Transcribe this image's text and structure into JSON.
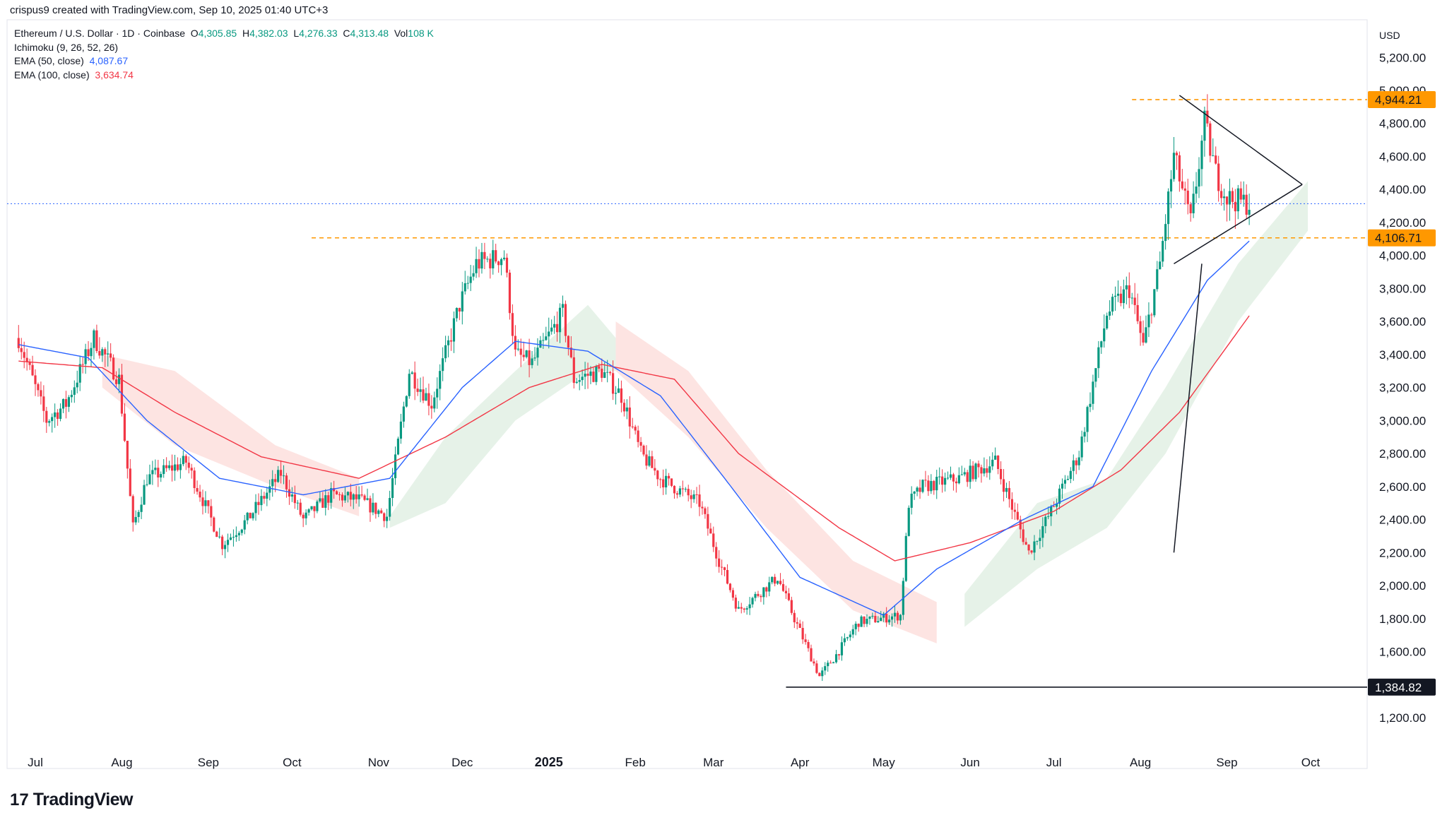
{
  "header": {
    "created_text": "crispus9 created with TradingView.com, Sep 10, 2025 01:40 UTC+3"
  },
  "legend": {
    "symbol": "Ethereum / U.S. Dollar · 1D · Coinbase",
    "o_label": "O",
    "o_val": "4,305.85",
    "h_label": "H",
    "h_val": "4,382.03",
    "l_label": "L",
    "l_val": "4,276.33",
    "c_label": "C",
    "c_val": "4,313.48",
    "vol_label": "Vol",
    "vol_val": "108 K",
    "ichimoku": "Ichimoku (9, 26, 52, 26)",
    "ema50_label": "EMA (50, close)",
    "ema50_val": "4,087.67",
    "ema100_label": "EMA (100, close)",
    "ema100_val": "3,634.74"
  },
  "footer": {
    "brand": "TradingView",
    "brand_mark": "17"
  },
  "colors": {
    "up": "#089981",
    "down": "#f23645",
    "ema50": "#2962ff",
    "ema100": "#f23645",
    "cloud_bull": "#e3f1e6",
    "cloud_bear": "#fde1df",
    "level": "#ff9800",
    "label_orange": "#ff9800"
  },
  "chart_data": {
    "type": "candlestick",
    "title": "Ethereum / U.S. Dollar · 1D · Coinbase",
    "currency": "USD",
    "y_ticks": [
      "5,200.00",
      "5,000.00",
      "4,800.00",
      "4,600.00",
      "4,400.00",
      "4,200.00",
      "4,000.00",
      "3,800.00",
      "3,600.00",
      "3,400.00",
      "3,200.00",
      "3,000.00",
      "2,800.00",
      "2,600.00",
      "2,400.00",
      "2,200.00",
      "2,000.00",
      "1,800.00",
      "1,600.00",
      "1,200.00"
    ],
    "y_tick_values": [
      5200,
      5000,
      4800,
      4600,
      4400,
      4200,
      4000,
      3800,
      3600,
      3400,
      3200,
      3000,
      2800,
      2600,
      2400,
      2200,
      2000,
      1800,
      1600,
      1200
    ],
    "ylim": [
      1100,
      5300
    ],
    "x_ticks": [
      "Jul",
      "Aug",
      "Sep",
      "Oct",
      "Nov",
      "Dec",
      "2025",
      "Feb",
      "Mar",
      "Apr",
      "May",
      "Jun",
      "Jul",
      "Aug",
      "Sep",
      "Oct"
    ],
    "x_tick_dates": [
      "2024-07-01",
      "2024-08-01",
      "2024-09-01",
      "2024-10-01",
      "2024-11-01",
      "2024-12-01",
      "2025-01-01",
      "2025-02-01",
      "2025-03-01",
      "2025-04-01",
      "2025-05-01",
      "2025-06-01",
      "2025-07-01",
      "2025-08-01",
      "2025-09-01",
      "2025-10-01"
    ],
    "price_labels": [
      {
        "text": "4,944.21",
        "value": 4944.21,
        "style": "orange"
      },
      {
        "text": "4,106.71",
        "value": 4106.71,
        "style": "orange"
      },
      {
        "text": "1,384.82",
        "value": 1384.82,
        "style": "black"
      }
    ],
    "horizontal_levels": [
      {
        "value": 4944.21,
        "from": "2025-07-29",
        "style": "dashed-orange"
      },
      {
        "value": 4106.71,
        "from": "2024-10-08",
        "style": "dashed-orange"
      },
      {
        "value": 1384.82,
        "from": "2025-03-27",
        "style": "solid-black"
      },
      {
        "value": 4313.48,
        "from": "2024-06-25",
        "style": "dotted-blue"
      }
    ],
    "trendlines": [
      {
        "from": [
          "2025-08-13",
          2200
        ],
        "to": [
          "2025-08-23",
          3950
        ]
      },
      {
        "from": [
          "2025-08-13",
          3950
        ],
        "to": [
          "2025-09-28",
          4430
        ]
      },
      {
        "from": [
          "2025-08-15",
          4970
        ],
        "to": [
          "2025-09-28",
          4430
        ]
      }
    ],
    "price_path": [
      [
        "2024-06-25",
        3500
      ],
      [
        "2024-07-05",
        3000
      ],
      [
        "2024-07-12",
        3100
      ],
      [
        "2024-07-22",
        3500
      ],
      [
        "2024-07-31",
        3250
      ],
      [
        "2024-08-05",
        2350
      ],
      [
        "2024-08-10",
        2650
      ],
      [
        "2024-08-24",
        2750
      ],
      [
        "2024-09-06",
        2250
      ],
      [
        "2024-09-15",
        2400
      ],
      [
        "2024-09-27",
        2680
      ],
      [
        "2024-10-05",
        2400
      ],
      [
        "2024-10-15",
        2550
      ],
      [
        "2024-10-25",
        2520
      ],
      [
        "2024-11-04",
        2420
      ],
      [
        "2024-11-12",
        3300
      ],
      [
        "2024-11-20",
        3100
      ],
      [
        "2024-11-30",
        3700
      ],
      [
        "2024-12-06",
        3950
      ],
      [
        "2024-12-16",
        4000
      ],
      [
        "2024-12-20",
        3400
      ],
      [
        "2024-12-26",
        3350
      ],
      [
        "2025-01-06",
        3650
      ],
      [
        "2025-01-10",
        3250
      ],
      [
        "2025-01-20",
        3300
      ],
      [
        "2025-01-27",
        3150
      ],
      [
        "2025-02-03",
        2800
      ],
      [
        "2025-02-10",
        2650
      ],
      [
        "2025-02-24",
        2500
      ],
      [
        "2025-03-03",
        2150
      ],
      [
        "2025-03-10",
        1850
      ],
      [
        "2025-03-24",
        2050
      ],
      [
        "2025-03-30",
        1800
      ],
      [
        "2025-04-08",
        1450
      ],
      [
        "2025-04-14",
        1580
      ],
      [
        "2025-04-22",
        1780
      ],
      [
        "2025-05-07",
        1820
      ],
      [
        "2025-05-10",
        2500
      ],
      [
        "2025-05-15",
        2600
      ],
      [
        "2025-05-28",
        2650
      ],
      [
        "2025-06-10",
        2750
      ],
      [
        "2025-06-22",
        2200
      ],
      [
        "2025-06-30",
        2450
      ],
      [
        "2025-07-10",
        2800
      ],
      [
        "2025-07-20",
        3650
      ],
      [
        "2025-07-28",
        3800
      ],
      [
        "2025-08-02",
        3450
      ],
      [
        "2025-08-08",
        3950
      ],
      [
        "2025-08-13",
        4600
      ],
      [
        "2025-08-19",
        4200
      ],
      [
        "2025-08-24",
        4800
      ],
      [
        "2025-08-28",
        4500
      ],
      [
        "2025-09-01",
        4350
      ],
      [
        "2025-09-09",
        4313.48
      ]
    ],
    "ema50_path": [
      [
        "2024-06-25",
        3460
      ],
      [
        "2024-07-20",
        3380
      ],
      [
        "2024-08-10",
        3000
      ],
      [
        "2024-09-05",
        2650
      ],
      [
        "2024-10-05",
        2550
      ],
      [
        "2024-11-05",
        2650
      ],
      [
        "2024-12-01",
        3200
      ],
      [
        "2024-12-20",
        3480
      ],
      [
        "2025-01-15",
        3420
      ],
      [
        "2025-02-10",
        3150
      ],
      [
        "2025-03-05",
        2650
      ],
      [
        "2025-04-01",
        2050
      ],
      [
        "2025-05-01",
        1820
      ],
      [
        "2025-05-20",
        2100
      ],
      [
        "2025-06-20",
        2400
      ],
      [
        "2025-07-15",
        2600
      ],
      [
        "2025-08-05",
        3300
      ],
      [
        "2025-08-25",
        3850
      ],
      [
        "2025-09-09",
        4087.67
      ]
    ],
    "ema100_path": [
      [
        "2024-06-25",
        3360
      ],
      [
        "2024-07-25",
        3320
      ],
      [
        "2024-08-20",
        3050
      ],
      [
        "2024-09-20",
        2780
      ],
      [
        "2024-10-25",
        2650
      ],
      [
        "2024-11-25",
        2900
      ],
      [
        "2024-12-25",
        3200
      ],
      [
        "2025-01-20",
        3340
      ],
      [
        "2025-02-15",
        3250
      ],
      [
        "2025-03-10",
        2800
      ],
      [
        "2025-04-15",
        2350
      ],
      [
        "2025-05-05",
        2150
      ],
      [
        "2025-06-01",
        2260
      ],
      [
        "2025-07-01",
        2450
      ],
      [
        "2025-07-25",
        2700
      ],
      [
        "2025-08-15",
        3050
      ],
      [
        "2025-09-09",
        3634.74
      ]
    ],
    "cloud_segments": [
      {
        "sentiment": "bear",
        "points": [
          [
            "2024-07-25",
            3400,
            3200
          ],
          [
            "2024-08-20",
            3300,
            2850
          ],
          [
            "2024-09-25",
            2850,
            2600
          ],
          [
            "2024-10-25",
            2650,
            2420
          ]
        ]
      },
      {
        "sentiment": "bull",
        "points": [
          [
            "2024-11-05",
            2420,
            2350
          ],
          [
            "2024-11-25",
            2900,
            2500
          ],
          [
            "2024-12-20",
            3300,
            3000
          ],
          [
            "2025-01-15",
            3700,
            3300
          ],
          [
            "2025-01-25",
            3500,
            3300
          ]
        ]
      },
      {
        "sentiment": "bear",
        "points": [
          [
            "2025-01-25",
            3600,
            3300
          ],
          [
            "2025-02-20",
            3300,
            2900
          ],
          [
            "2025-03-20",
            2700,
            2350
          ],
          [
            "2025-04-20",
            2150,
            1850
          ],
          [
            "2025-05-20",
            1900,
            1650
          ]
        ]
      },
      {
        "sentiment": "bull",
        "points": [
          [
            "2025-05-30",
            1950,
            1750
          ],
          [
            "2025-06-25",
            2500,
            2100
          ],
          [
            "2025-07-20",
            2650,
            2350
          ],
          [
            "2025-08-10",
            3200,
            2800
          ],
          [
            "2025-09-05",
            3950,
            3600
          ],
          [
            "2025-09-30",
            4450,
            4150
          ]
        ]
      }
    ]
  }
}
